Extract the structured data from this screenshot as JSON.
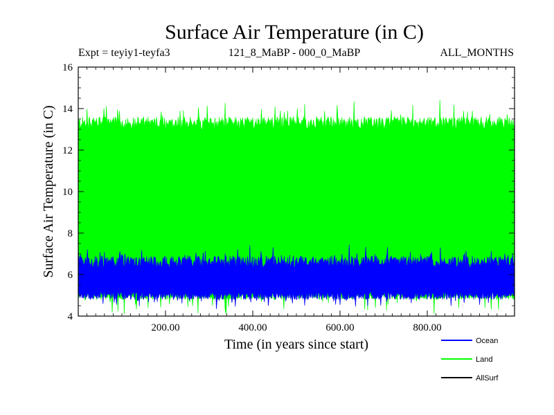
{
  "chart_data": {
    "type": "line",
    "title": "Surface Air Temperature (in C)",
    "subtitle_left": "Expt = teyiy1-teyfa3",
    "subtitle_center": "121_8_MaBP - 000_0_MaBP",
    "subtitle_right": "ALL_MONTHS",
    "xlabel": "Time (in years since start)",
    "ylabel": "Surface Air Temperature (in C)",
    "xlim": [
      0,
      1000
    ],
    "ylim": [
      4,
      16
    ],
    "x_ticks": [
      200,
      400,
      600,
      800
    ],
    "x_tick_labels": [
      "200.00",
      "400.00",
      "600.00",
      "800.00"
    ],
    "y_ticks": [
      4,
      6,
      8,
      10,
      12,
      14,
      16
    ],
    "y_tick_labels": [
      "4",
      "6",
      "8",
      "10",
      "12",
      "14",
      "16"
    ],
    "series": [
      {
        "name": "Ocean",
        "color": "#0000ff",
        "low_mean": 5.0,
        "high_mean": 6.6,
        "low_min": 4.5,
        "high_max": 7.2
      },
      {
        "name": "Land",
        "color": "#00ff00",
        "low_mean": 5.0,
        "high_mean": 13.3,
        "low_min": 4.2,
        "high_max": 14.3
      },
      {
        "name": "AllSurf",
        "color": "#000000",
        "low_mean": null,
        "high_mean": null
      }
    ],
    "legend_position": "bottom-right"
  }
}
